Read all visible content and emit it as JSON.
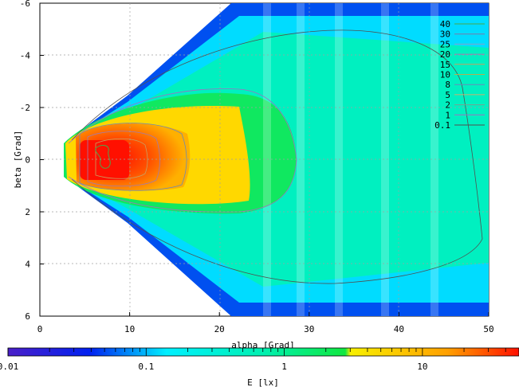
{
  "chart_data": {
    "type": "heatmap",
    "title": "",
    "xlabel": "alpha [Grad]",
    "ylabel": "beta [Grad]",
    "xlim": [
      0,
      50
    ],
    "ylim": [
      6,
      -6
    ],
    "x_ticks": [
      "0",
      "10",
      "20",
      "30",
      "40",
      "50"
    ],
    "y_ticks": [
      "-6",
      "-4",
      "-2",
      "0",
      "2",
      "4",
      "6"
    ],
    "grid": true,
    "colorbar": {
      "label": "E [lx]",
      "scale": "log",
      "range": [
        0.01,
        50
      ],
      "ticks": [
        "0.01",
        "0.1",
        "1",
        "10"
      ]
    },
    "legend_placement": "top-right",
    "contour_levels": [
      {
        "label": "40",
        "color": "#4aa84a"
      },
      {
        "label": "30",
        "color": "#7a7aa8"
      },
      {
        "label": "25",
        "color": "#8aa0c8"
      },
      {
        "label": "20",
        "color": "#a07ab0"
      },
      {
        "label": "15",
        "color": "#c8a060"
      },
      {
        "label": "10",
        "color": "#b0b050"
      },
      {
        "label": "8",
        "color": "#6a8ab8"
      },
      {
        "label": "5",
        "color": "#c8b070"
      },
      {
        "label": "2",
        "color": "#7aa090"
      },
      {
        "label": "1",
        "color": "#a070c0"
      },
      {
        "label": "0.1",
        "color": "#505050"
      }
    ],
    "color_bands": [
      {
        "from": 0.01,
        "to": 0.05,
        "color": "#3b1fd8"
      },
      {
        "from": 0.05,
        "to": 0.1,
        "color": "#0050f0"
      },
      {
        "from": 0.1,
        "to": 0.3,
        "color": "#00e8ff"
      },
      {
        "from": 0.3,
        "to": 0.5,
        "color": "#00f8d0"
      },
      {
        "from": 0.5,
        "to": 1.0,
        "color": "#00e890"
      },
      {
        "from": 1.0,
        "to": 3.0,
        "color": "#10e840"
      },
      {
        "from": 3.0,
        "to": 8.0,
        "color": "#f8f000"
      },
      {
        "from": 8.0,
        "to": 20.0,
        "color": "#ffb000"
      },
      {
        "from": 20.0,
        "to": 35.0,
        "color": "#ff6000"
      },
      {
        "from": 35.0,
        "to": 50.0,
        "color": "#ff1000"
      }
    ]
  }
}
